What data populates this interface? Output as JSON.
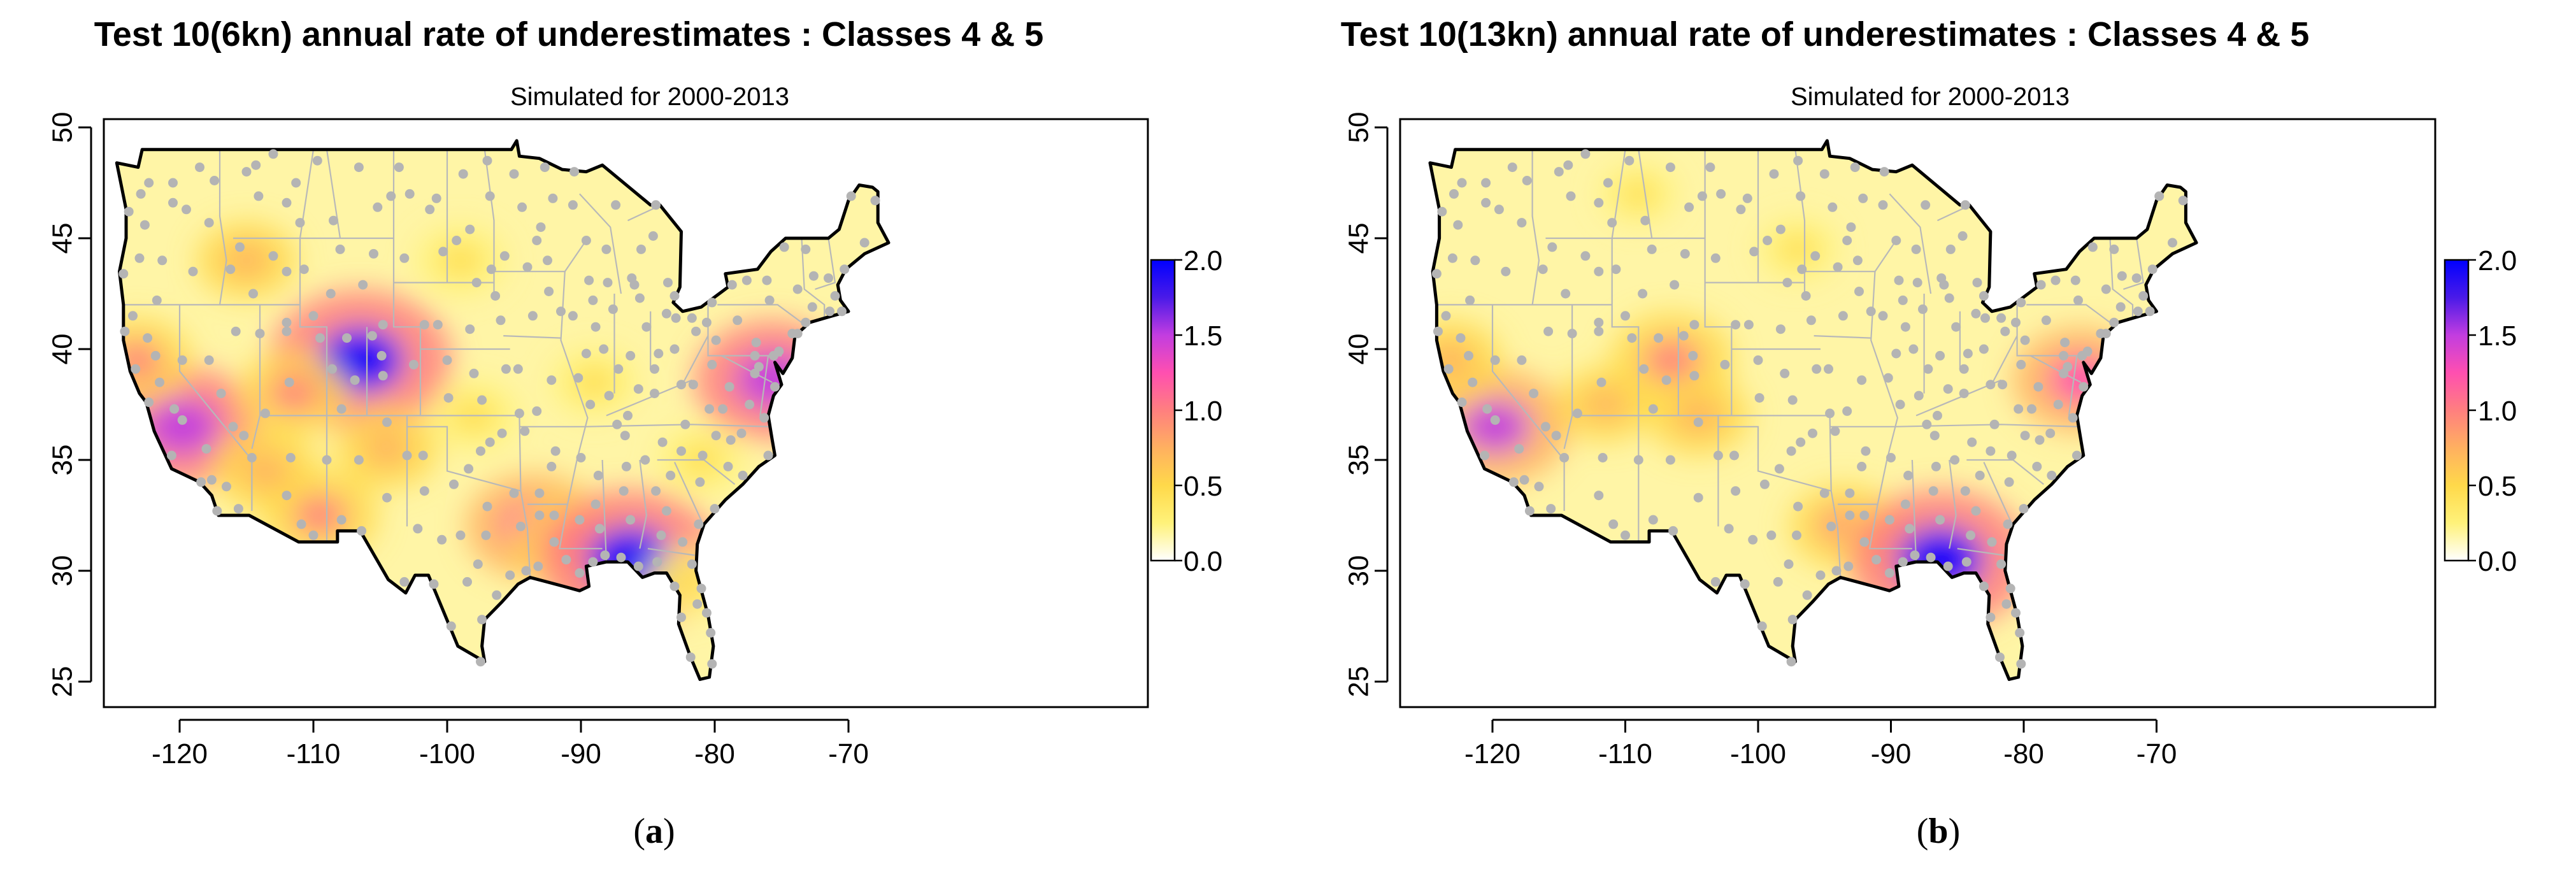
{
  "panels": [
    {
      "id": "a",
      "title": "Test 10(6kn) annual rate of underestimates  : Classes 4 & 5",
      "subtitle": "Simulated for 2000-2013",
      "panel_label": {
        "open": "(",
        "letter": "a",
        "close": ")"
      },
      "hotspots": [
        {
          "lon": -106.5,
          "lat": 39.5,
          "value": 2.0
        },
        {
          "lon": -119.8,
          "lat": 36.5,
          "value": 1.6
        },
        {
          "lon": -123.2,
          "lat": 39.5,
          "value": 0.9
        },
        {
          "lon": -111.5,
          "lat": 38.0,
          "value": 0.9
        },
        {
          "lon": -115.0,
          "lat": 44.0,
          "value": 0.75
        },
        {
          "lon": -113.5,
          "lat": 34.5,
          "value": 0.85
        },
        {
          "lon": -109.5,
          "lat": 32.5,
          "value": 1.0
        },
        {
          "lon": -104.5,
          "lat": 35.5,
          "value": 0.8
        },
        {
          "lon": -93.5,
          "lat": 32.0,
          "value": 1.3
        },
        {
          "lon": -90.5,
          "lat": 31.3,
          "value": 1.1
        },
        {
          "lon": -86.3,
          "lat": 30.5,
          "value": 2.0
        },
        {
          "lon": -75.7,
          "lat": 38.6,
          "value": 1.6
        },
        {
          "lon": -99.0,
          "lat": 44.0,
          "value": 0.6
        },
        {
          "lon": -98.0,
          "lat": 37.0,
          "value": 0.6
        },
        {
          "lon": -89.0,
          "lat": 38.5,
          "value": 0.55
        },
        {
          "lon": -81.0,
          "lat": 35.0,
          "value": 0.55
        },
        {
          "lon": -82.0,
          "lat": 29.5,
          "value": 0.6
        }
      ]
    },
    {
      "id": "b",
      "title": "Test 10(13kn) annual rate of underestimates  : Classes 4 & 5",
      "subtitle": "Simulated for 2000-2013",
      "panel_label": {
        "open": "(",
        "letter": "b",
        "close": ")"
      },
      "hotspots": [
        {
          "lon": -119.8,
          "lat": 36.5,
          "value": 1.5
        },
        {
          "lon": -106.5,
          "lat": 39.5,
          "value": 1.1
        },
        {
          "lon": -123.2,
          "lat": 39.5,
          "value": 0.8
        },
        {
          "lon": -111.5,
          "lat": 37.5,
          "value": 0.7
        },
        {
          "lon": -104.5,
          "lat": 37.0,
          "value": 0.8
        },
        {
          "lon": -93.5,
          "lat": 32.0,
          "value": 0.9
        },
        {
          "lon": -90.5,
          "lat": 31.3,
          "value": 0.7
        },
        {
          "lon": -86.3,
          "lat": 30.5,
          "value": 2.0
        },
        {
          "lon": -75.7,
          "lat": 38.6,
          "value": 1.3
        },
        {
          "lon": -109.0,
          "lat": 47.0,
          "value": 0.4
        },
        {
          "lon": -97.0,
          "lat": 44.5,
          "value": 0.45
        }
      ]
    }
  ],
  "axes": {
    "x_ticks": [
      -120,
      -110,
      -100,
      -90,
      -80,
      -70
    ],
    "y_ticks": [
      25,
      30,
      35,
      40,
      45,
      50
    ],
    "xlim": [
      -125,
      -65
    ],
    "ylim": [
      24,
      51
    ]
  },
  "legend": {
    "ticks": [
      "0.0",
      "0.5",
      "1.0",
      "1.5",
      "2.0"
    ],
    "range": [
      0,
      2
    ],
    "colors": [
      "#ffffff",
      "#fff27a",
      "#ffd94a",
      "#ffb060",
      "#ff7f7f",
      "#ff4fb0",
      "#c23de0",
      "#4a1ae8",
      "#0000ff"
    ]
  },
  "colors": {
    "station_dot": "#b4b4b4",
    "state_lines": "#b8b8b8",
    "coastline": "#000000",
    "land_base": "#fff5a6"
  }
}
